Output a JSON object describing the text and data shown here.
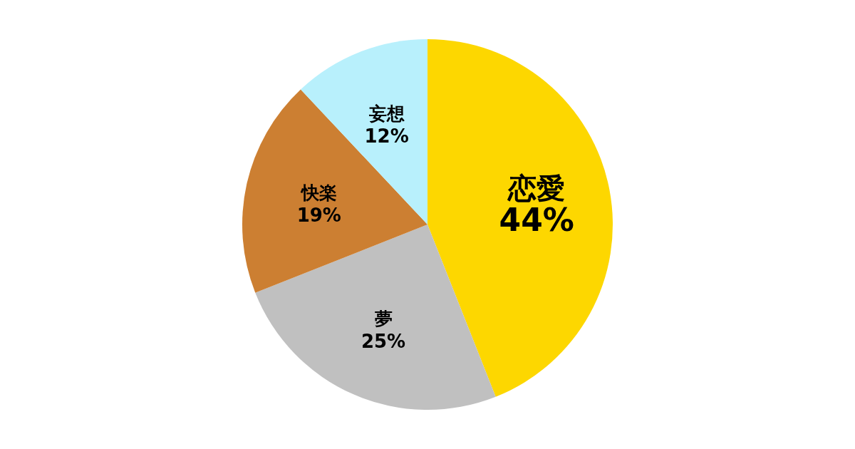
{
  "chart_data": {
    "type": "pie",
    "categories": [
      "恋愛",
      "夢",
      "快楽",
      "妄想"
    ],
    "values": [
      44,
      25,
      19,
      12
    ],
    "colors": [
      "#fdd700",
      "#c0c0c0",
      "#cc7f32",
      "#b8f0fc"
    ],
    "value_labels": [
      "44%",
      "25%",
      "19%",
      "12%"
    ]
  }
}
